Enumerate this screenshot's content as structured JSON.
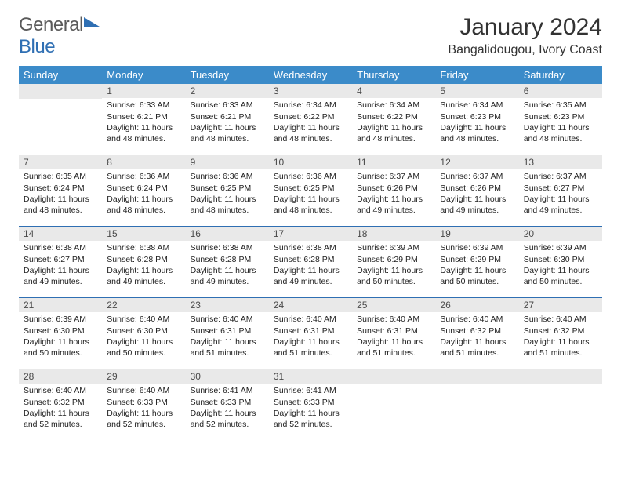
{
  "logo": {
    "word1": "General",
    "word2": "Blue"
  },
  "title": "January 2024",
  "location": "Bangalidougou, Ivory Coast",
  "colors": {
    "header_bg": "#3b8bc9",
    "header_text": "#ffffff",
    "daynum_bg": "#e9e9e9",
    "rule": "#2f6fb3",
    "logo_gray": "#5a5a5a",
    "logo_blue": "#2f6fb3"
  },
  "day_headers": [
    "Sunday",
    "Monday",
    "Tuesday",
    "Wednesday",
    "Thursday",
    "Friday",
    "Saturday"
  ],
  "weeks": [
    [
      {
        "day": "",
        "sunrise": "",
        "sunset": "",
        "daylight": ""
      },
      {
        "day": "1",
        "sunrise": "Sunrise: 6:33 AM",
        "sunset": "Sunset: 6:21 PM",
        "daylight": "Daylight: 11 hours and 48 minutes."
      },
      {
        "day": "2",
        "sunrise": "Sunrise: 6:33 AM",
        "sunset": "Sunset: 6:21 PM",
        "daylight": "Daylight: 11 hours and 48 minutes."
      },
      {
        "day": "3",
        "sunrise": "Sunrise: 6:34 AM",
        "sunset": "Sunset: 6:22 PM",
        "daylight": "Daylight: 11 hours and 48 minutes."
      },
      {
        "day": "4",
        "sunrise": "Sunrise: 6:34 AM",
        "sunset": "Sunset: 6:22 PM",
        "daylight": "Daylight: 11 hours and 48 minutes."
      },
      {
        "day": "5",
        "sunrise": "Sunrise: 6:34 AM",
        "sunset": "Sunset: 6:23 PM",
        "daylight": "Daylight: 11 hours and 48 minutes."
      },
      {
        "day": "6",
        "sunrise": "Sunrise: 6:35 AM",
        "sunset": "Sunset: 6:23 PM",
        "daylight": "Daylight: 11 hours and 48 minutes."
      }
    ],
    [
      {
        "day": "7",
        "sunrise": "Sunrise: 6:35 AM",
        "sunset": "Sunset: 6:24 PM",
        "daylight": "Daylight: 11 hours and 48 minutes."
      },
      {
        "day": "8",
        "sunrise": "Sunrise: 6:36 AM",
        "sunset": "Sunset: 6:24 PM",
        "daylight": "Daylight: 11 hours and 48 minutes."
      },
      {
        "day": "9",
        "sunrise": "Sunrise: 6:36 AM",
        "sunset": "Sunset: 6:25 PM",
        "daylight": "Daylight: 11 hours and 48 minutes."
      },
      {
        "day": "10",
        "sunrise": "Sunrise: 6:36 AM",
        "sunset": "Sunset: 6:25 PM",
        "daylight": "Daylight: 11 hours and 48 minutes."
      },
      {
        "day": "11",
        "sunrise": "Sunrise: 6:37 AM",
        "sunset": "Sunset: 6:26 PM",
        "daylight": "Daylight: 11 hours and 49 minutes."
      },
      {
        "day": "12",
        "sunrise": "Sunrise: 6:37 AM",
        "sunset": "Sunset: 6:26 PM",
        "daylight": "Daylight: 11 hours and 49 minutes."
      },
      {
        "day": "13",
        "sunrise": "Sunrise: 6:37 AM",
        "sunset": "Sunset: 6:27 PM",
        "daylight": "Daylight: 11 hours and 49 minutes."
      }
    ],
    [
      {
        "day": "14",
        "sunrise": "Sunrise: 6:38 AM",
        "sunset": "Sunset: 6:27 PM",
        "daylight": "Daylight: 11 hours and 49 minutes."
      },
      {
        "day": "15",
        "sunrise": "Sunrise: 6:38 AM",
        "sunset": "Sunset: 6:28 PM",
        "daylight": "Daylight: 11 hours and 49 minutes."
      },
      {
        "day": "16",
        "sunrise": "Sunrise: 6:38 AM",
        "sunset": "Sunset: 6:28 PM",
        "daylight": "Daylight: 11 hours and 49 minutes."
      },
      {
        "day": "17",
        "sunrise": "Sunrise: 6:38 AM",
        "sunset": "Sunset: 6:28 PM",
        "daylight": "Daylight: 11 hours and 49 minutes."
      },
      {
        "day": "18",
        "sunrise": "Sunrise: 6:39 AM",
        "sunset": "Sunset: 6:29 PM",
        "daylight": "Daylight: 11 hours and 50 minutes."
      },
      {
        "day": "19",
        "sunrise": "Sunrise: 6:39 AM",
        "sunset": "Sunset: 6:29 PM",
        "daylight": "Daylight: 11 hours and 50 minutes."
      },
      {
        "day": "20",
        "sunrise": "Sunrise: 6:39 AM",
        "sunset": "Sunset: 6:30 PM",
        "daylight": "Daylight: 11 hours and 50 minutes."
      }
    ],
    [
      {
        "day": "21",
        "sunrise": "Sunrise: 6:39 AM",
        "sunset": "Sunset: 6:30 PM",
        "daylight": "Daylight: 11 hours and 50 minutes."
      },
      {
        "day": "22",
        "sunrise": "Sunrise: 6:40 AM",
        "sunset": "Sunset: 6:30 PM",
        "daylight": "Daylight: 11 hours and 50 minutes."
      },
      {
        "day": "23",
        "sunrise": "Sunrise: 6:40 AM",
        "sunset": "Sunset: 6:31 PM",
        "daylight": "Daylight: 11 hours and 51 minutes."
      },
      {
        "day": "24",
        "sunrise": "Sunrise: 6:40 AM",
        "sunset": "Sunset: 6:31 PM",
        "daylight": "Daylight: 11 hours and 51 minutes."
      },
      {
        "day": "25",
        "sunrise": "Sunrise: 6:40 AM",
        "sunset": "Sunset: 6:31 PM",
        "daylight": "Daylight: 11 hours and 51 minutes."
      },
      {
        "day": "26",
        "sunrise": "Sunrise: 6:40 AM",
        "sunset": "Sunset: 6:32 PM",
        "daylight": "Daylight: 11 hours and 51 minutes."
      },
      {
        "day": "27",
        "sunrise": "Sunrise: 6:40 AM",
        "sunset": "Sunset: 6:32 PM",
        "daylight": "Daylight: 11 hours and 51 minutes."
      }
    ],
    [
      {
        "day": "28",
        "sunrise": "Sunrise: 6:40 AM",
        "sunset": "Sunset: 6:32 PM",
        "daylight": "Daylight: 11 hours and 52 minutes."
      },
      {
        "day": "29",
        "sunrise": "Sunrise: 6:40 AM",
        "sunset": "Sunset: 6:33 PM",
        "daylight": "Daylight: 11 hours and 52 minutes."
      },
      {
        "day": "30",
        "sunrise": "Sunrise: 6:41 AM",
        "sunset": "Sunset: 6:33 PM",
        "daylight": "Daylight: 11 hours and 52 minutes."
      },
      {
        "day": "31",
        "sunrise": "Sunrise: 6:41 AM",
        "sunset": "Sunset: 6:33 PM",
        "daylight": "Daylight: 11 hours and 52 minutes."
      },
      {
        "day": "",
        "sunrise": "",
        "sunset": "",
        "daylight": ""
      },
      {
        "day": "",
        "sunrise": "",
        "sunset": "",
        "daylight": ""
      },
      {
        "day": "",
        "sunrise": "",
        "sunset": "",
        "daylight": ""
      }
    ]
  ]
}
